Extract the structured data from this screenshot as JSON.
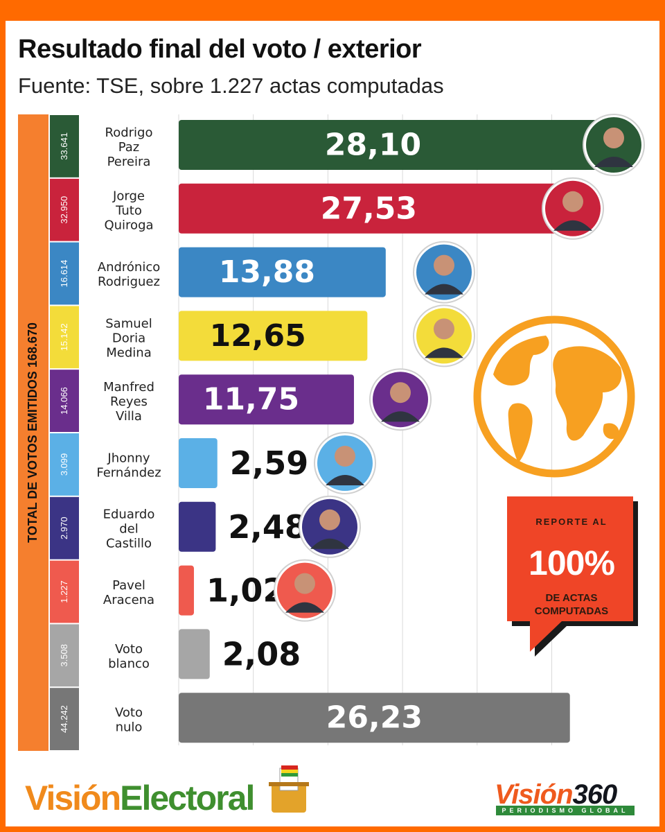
{
  "header": {
    "title": "Resultado final del voto / exterior",
    "subtitle": "Fuente: TSE, sobre 1.227 actas computadas"
  },
  "total_label": "TOTAL DE VOTOS EMITIDOS 168.670",
  "report": {
    "top": "REPORTE AL",
    "pct": "100%",
    "bottom_1": "DE ACTAS",
    "bottom_2": "COMPUTADAS"
  },
  "logos": {
    "left_a": "Visión",
    "left_b": "Electoral",
    "right_a": "Visión",
    "right_b": "360",
    "right_tag": "PERIODISMO GLOBAL"
  },
  "colors": {
    "brand_orange": "#ff6a00",
    "report_red": "#ef4527"
  },
  "chart_data": {
    "type": "bar",
    "orientation": "horizontal",
    "xlim": [
      0,
      30
    ],
    "grid": true,
    "categories": [
      "Rodrigo Paz Pereira",
      "Jorge Tuto Quiroga",
      "Andrónico Rodriguez",
      "Samuel Doria Medina",
      "Manfred Reyes Villa",
      "Jhonny Fernández",
      "Eduardo del Castillo",
      "Pavel Aracena",
      "Voto blanco",
      "Voto nulo"
    ],
    "rows": [
      {
        "name": [
          "Rodrigo",
          "Paz",
          "Pereira"
        ],
        "votes": "33.641",
        "value": 28.1,
        "label": "28,10",
        "color": "#2a5a36",
        "vcolor": "#ffffff",
        "inside": true,
        "photo": true
      },
      {
        "name": [
          "Jorge",
          "Tuto",
          "Quiroga"
        ],
        "votes": "32.950",
        "value": 27.53,
        "label": "27,53",
        "color": "#c9233c",
        "vcolor": "#ffffff",
        "inside": true,
        "photo": true
      },
      {
        "name": [
          "Andrónico",
          "Rodriguez"
        ],
        "votes": "16.614",
        "value": 13.88,
        "label": "13,88",
        "color": "#3b87c4",
        "vcolor": "#ffffff",
        "inside": true,
        "photo": true
      },
      {
        "name": [
          "Samuel",
          "Doria",
          "Medina"
        ],
        "votes": "15.142",
        "value": 12.65,
        "label": "12,65",
        "color": "#f3dc3a",
        "vcolor": "#111111",
        "inside": true,
        "photo": true
      },
      {
        "name": [
          "Manfred",
          "Reyes",
          "Villa"
        ],
        "votes": "14.066",
        "value": 11.75,
        "label": "11,75",
        "color": "#6a2e8c",
        "vcolor": "#ffffff",
        "inside": true,
        "photo": true
      },
      {
        "name": [
          "Jhonny",
          "Fernández"
        ],
        "votes": "3.099",
        "value": 2.59,
        "label": "2,59",
        "color": "#5bb0e6",
        "vcolor": "#111111",
        "inside": false,
        "photo": true
      },
      {
        "name": [
          "Eduardo",
          "del",
          "Castillo"
        ],
        "votes": "2.970",
        "value": 2.48,
        "label": "2,48",
        "color": "#3b3485",
        "vcolor": "#111111",
        "inside": false,
        "photo": true
      },
      {
        "name": [
          "Pavel",
          "Aracena"
        ],
        "votes": "1.227",
        "value": 1.02,
        "label": "1,02",
        "color": "#ef5a4e",
        "vcolor": "#111111",
        "inside": false,
        "photo": true
      },
      {
        "name": [
          "Voto",
          "blanco"
        ],
        "votes": "3.508",
        "value": 2.08,
        "label": "2,08",
        "color": "#a6a6a6",
        "vcolor": "#111111",
        "inside": false,
        "photo": false
      },
      {
        "name": [
          "Voto",
          "nulo"
        ],
        "votes": "44.242",
        "value": 26.23,
        "label": "26,23",
        "color": "#777777",
        "vcolor": "#ffffff",
        "inside": true,
        "photo": false
      }
    ]
  }
}
